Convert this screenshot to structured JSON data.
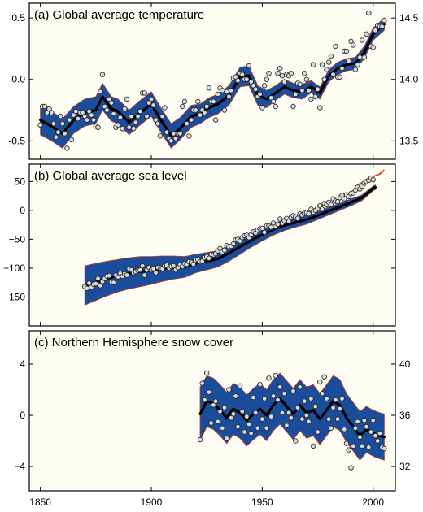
{
  "chart_data": [
    {
      "id": "temp",
      "type": "scatter",
      "title": "(a) Global average temperature",
      "xlim": [
        1845,
        2010
      ],
      "ylim": [
        -0.65,
        0.62
      ],
      "y_ticks": [
        -0.5,
        0.0,
        0.5
      ],
      "y_tick_labels": [
        "-0.5",
        "0.0",
        "0.5"
      ],
      "y2_ticks": [
        -0.5,
        0.0,
        0.5
      ],
      "y2_tick_labels": [
        "13.5",
        "14.0",
        "14.5"
      ],
      "smooth": {
        "x": [
          1850,
          1855,
          1860,
          1865,
          1870,
          1875,
          1878,
          1882,
          1885,
          1890,
          1895,
          1900,
          1905,
          1909,
          1913,
          1918,
          1922,
          1926,
          1930,
          1935,
          1940,
          1944,
          1948,
          1952,
          1956,
          1960,
          1964,
          1968,
          1972,
          1976,
          1980,
          1984,
          1988,
          1992,
          1996,
          2000,
          2005
        ],
        "y": [
          -0.33,
          -0.38,
          -0.44,
          -0.33,
          -0.27,
          -0.25,
          -0.14,
          -0.24,
          -0.26,
          -0.35,
          -0.27,
          -0.2,
          -0.35,
          -0.46,
          -0.4,
          -0.3,
          -0.28,
          -0.23,
          -0.2,
          -0.13,
          0.02,
          0.03,
          -0.13,
          -0.16,
          -0.11,
          -0.06,
          -0.09,
          -0.1,
          -0.06,
          -0.11,
          0.03,
          0.09,
          0.12,
          0.13,
          0.22,
          0.37,
          0.45
        ]
      },
      "band_halfwidth": [
        0.12,
        0.12,
        0.12,
        0.11,
        0.11,
        0.11,
        0.11,
        0.1,
        0.1,
        0.1,
        0.1,
        0.1,
        0.1,
        0.1,
        0.09,
        0.09,
        0.08,
        0.08,
        0.08,
        0.08,
        0.08,
        0.08,
        0.08,
        0.07,
        0.06,
        0.06,
        0.06,
        0.06,
        0.05,
        0.05,
        0.05,
        0.05,
        0.05,
        0.05,
        0.05,
        0.05,
        0.05
      ],
      "points": {
        "x": [
          1850,
          1851,
          1852,
          1853,
          1854,
          1855,
          1856,
          1857,
          1858,
          1859,
          1860,
          1861,
          1862,
          1863,
          1864,
          1865,
          1866,
          1867,
          1868,
          1869,
          1870,
          1871,
          1872,
          1873,
          1874,
          1875,
          1876,
          1877,
          1878,
          1879,
          1880,
          1881,
          1882,
          1883,
          1884,
          1885,
          1886,
          1887,
          1888,
          1889,
          1890,
          1891,
          1892,
          1893,
          1894,
          1895,
          1896,
          1897,
          1898,
          1899,
          1900,
          1901,
          1902,
          1903,
          1904,
          1905,
          1906,
          1907,
          1908,
          1909,
          1910,
          1911,
          1912,
          1913,
          1914,
          1915,
          1916,
          1917,
          1918,
          1919,
          1920,
          1921,
          1922,
          1923,
          1924,
          1925,
          1926,
          1927,
          1928,
          1929,
          1930,
          1931,
          1932,
          1933,
          1934,
          1935,
          1936,
          1937,
          1938,
          1939,
          1940,
          1941,
          1942,
          1943,
          1944,
          1945,
          1946,
          1947,
          1948,
          1949,
          1950,
          1951,
          1952,
          1953,
          1954,
          1955,
          1956,
          1957,
          1958,
          1959,
          1960,
          1961,
          1962,
          1963,
          1964,
          1965,
          1966,
          1967,
          1968,
          1969,
          1970,
          1971,
          1972,
          1973,
          1974,
          1975,
          1976,
          1977,
          1978,
          1979,
          1980,
          1981,
          1982,
          1983,
          1984,
          1985,
          1986,
          1987,
          1988,
          1989,
          1990,
          1991,
          1992,
          1993,
          1994,
          1995,
          1996,
          1997,
          1998,
          1999,
          2000,
          2001,
          2002,
          2003,
          2004,
          2005
        ],
        "y": [
          -0.37,
          -0.22,
          -0.22,
          -0.27,
          -0.24,
          -0.27,
          -0.36,
          -0.47,
          -0.43,
          -0.3,
          -0.36,
          -0.44,
          -0.56,
          -0.33,
          -0.49,
          -0.29,
          -0.26,
          -0.32,
          -0.27,
          -0.27,
          -0.3,
          -0.33,
          -0.26,
          -0.29,
          -0.33,
          -0.38,
          -0.39,
          -0.1,
          0.04,
          -0.22,
          -0.25,
          -0.16,
          -0.19,
          -0.28,
          -0.39,
          -0.37,
          -0.31,
          -0.4,
          -0.24,
          -0.16,
          -0.39,
          -0.3,
          -0.4,
          -0.35,
          -0.3,
          -0.26,
          -0.11,
          -0.11,
          -0.3,
          -0.19,
          -0.16,
          -0.21,
          -0.33,
          -0.36,
          -0.46,
          -0.3,
          -0.23,
          -0.43,
          -0.48,
          -0.5,
          -0.44,
          -0.48,
          -0.44,
          -0.44,
          -0.22,
          -0.18,
          -0.36,
          -0.46,
          -0.33,
          -0.25,
          -0.25,
          -0.18,
          -0.29,
          -0.25,
          -0.27,
          -0.22,
          -0.07,
          -0.18,
          -0.18,
          -0.33,
          -0.12,
          -0.07,
          -0.09,
          -0.25,
          -0.1,
          -0.14,
          -0.09,
          0.01,
          0.02,
          -0.01,
          0.05,
          0.04,
          0.0,
          0.0,
          0.11,
          -0.02,
          -0.05,
          -0.08,
          -0.14,
          -0.12,
          -0.23,
          -0.05,
          0.0,
          0.05,
          -0.15,
          -0.18,
          -0.22,
          0.05,
          0.09,
          0.03,
          -0.02,
          0.04,
          0.03,
          0.05,
          -0.22,
          -0.12,
          -0.03,
          -0.04,
          -0.09,
          0.05,
          0.0,
          -0.09,
          -0.16,
          0.12,
          -0.14,
          -0.08,
          -0.23,
          0.12,
          0.0,
          0.08,
          0.14,
          0.19,
          0.04,
          0.27,
          0.02,
          0.02,
          0.09,
          0.23,
          0.23,
          0.15,
          0.31,
          0.28,
          0.08,
          0.12,
          0.18,
          0.32,
          0.18,
          0.37,
          0.54,
          0.27,
          0.26,
          0.4,
          0.44,
          0.43,
          0.43,
          0.48
        ]
      }
    },
    {
      "id": "sea",
      "type": "scatter",
      "title": "(b) Global average sea level",
      "xlim": [
        1845,
        2010
      ],
      "ylim": [
        -200,
        80
      ],
      "y_ticks": [
        -150,
        -100,
        -50,
        0,
        50
      ],
      "y_tick_labels": [
        "−150",
        "−100",
        "−50",
        "0",
        "50"
      ],
      "smooth": {
        "x": [
          1870,
          1875,
          1880,
          1885,
          1890,
          1895,
          1900,
          1905,
          1910,
          1915,
          1920,
          1925,
          1930,
          1935,
          1940,
          1945,
          1950,
          1955,
          1960,
          1965,
          1970,
          1975,
          1980,
          1985,
          1990,
          1995,
          2000,
          2001
        ],
        "y": [
          -130,
          -124,
          -118,
          -113,
          -109,
          -106,
          -104,
          -101,
          -99,
          -98,
          -92,
          -88,
          -84,
          -74,
          -63,
          -52,
          -42,
          -33,
          -26,
          -21,
          -16,
          -9,
          -1,
          6,
          14,
          22,
          38,
          40
        ]
      },
      "band_halfwidth": [
        34,
        32,
        30,
        28,
        27,
        26,
        24,
        22,
        20,
        18,
        16,
        15,
        14,
        14,
        13,
        12,
        11,
        10,
        9,
        8,
        8,
        7,
        7,
        6,
        6,
        5,
        4,
        4
      ],
      "satellite": {
        "x": [
          1993,
          1995,
          1997,
          1999,
          2001,
          2003,
          2005
        ],
        "y": [
          44,
          48,
          52,
          57,
          60,
          63,
          70
        ]
      },
      "points": {
        "x": [
          1870,
          1871,
          1872,
          1873,
          1874,
          1875,
          1876,
          1877,
          1878,
          1879,
          1880,
          1881,
          1882,
          1883,
          1884,
          1885,
          1886,
          1887,
          1888,
          1889,
          1890,
          1891,
          1892,
          1893,
          1894,
          1895,
          1896,
          1897,
          1898,
          1899,
          1900,
          1901,
          1902,
          1903,
          1904,
          1905,
          1906,
          1907,
          1908,
          1909,
          1910,
          1911,
          1912,
          1913,
          1914,
          1915,
          1916,
          1917,
          1918,
          1919,
          1920,
          1921,
          1922,
          1923,
          1924,
          1925,
          1926,
          1927,
          1928,
          1929,
          1930,
          1931,
          1932,
          1933,
          1934,
          1935,
          1936,
          1937,
          1938,
          1939,
          1940,
          1941,
          1942,
          1943,
          1944,
          1945,
          1946,
          1947,
          1948,
          1949,
          1950,
          1951,
          1952,
          1953,
          1954,
          1955,
          1956,
          1957,
          1958,
          1959,
          1960,
          1961,
          1962,
          1963,
          1964,
          1965,
          1966,
          1967,
          1968,
          1969,
          1970,
          1971,
          1972,
          1973,
          1974,
          1975,
          1976,
          1977,
          1978,
          1979,
          1980,
          1981,
          1982,
          1983,
          1984,
          1985,
          1986,
          1987,
          1988,
          1989,
          1990,
          1991,
          1992,
          1993,
          1994,
          1995,
          1996,
          1997,
          1998,
          1999,
          2000
        ],
        "y": [
          -132,
          -135,
          -126,
          -133,
          -128,
          -127,
          -118,
          -130,
          -123,
          -118,
          -114,
          -113,
          -124,
          -125,
          -112,
          -115,
          -109,
          -114,
          -110,
          -112,
          -101,
          -103,
          -108,
          -106,
          -104,
          -103,
          -96,
          -112,
          -103,
          -99,
          -103,
          -101,
          -108,
          -99,
          -100,
          -101,
          -96,
          -95,
          -100,
          -97,
          -96,
          -103,
          -99,
          -94,
          -97,
          -92,
          -93,
          -89,
          -90,
          -93,
          -86,
          -85,
          -89,
          -88,
          -82,
          -80,
          -83,
          -76,
          -77,
          -75,
          -70,
          -66,
          -72,
          -69,
          -61,
          -63,
          -62,
          -58,
          -51,
          -50,
          -53,
          -47,
          -44,
          -43,
          -47,
          -42,
          -37,
          -39,
          -34,
          -32,
          -31,
          -38,
          -27,
          -27,
          -29,
          -22,
          -28,
          -24,
          -15,
          -22,
          -18,
          -14,
          -19,
          -12,
          -9,
          -11,
          -14,
          -6,
          -8,
          -5,
          -4,
          -6,
          2,
          -3,
          0,
          4,
          8,
          2,
          12,
          10,
          14,
          10,
          20,
          16,
          15,
          22,
          26,
          20,
          27,
          24,
          29,
          30,
          35,
          40,
          37,
          42,
          47,
          50,
          52,
          56,
          53
        ]
      }
    },
    {
      "id": "snow",
      "type": "scatter",
      "title": "(c) Northern Hemisphere snow cover",
      "xlim": [
        1845,
        2010
      ],
      "ylim": [
        -5.9,
        6.6
      ],
      "y_ticks": [
        -4,
        0,
        4
      ],
      "y_tick_labels": [
        "−4",
        "0",
        "4"
      ],
      "y2_ticks": [
        -4,
        0,
        4
      ],
      "y2_tick_labels": [
        "32",
        "36",
        "40"
      ],
      "smooth": {
        "x": [
          1922,
          1925,
          1928,
          1931,
          1934,
          1937,
          1940,
          1943,
          1946,
          1949,
          1952,
          1955,
          1958,
          1961,
          1964,
          1967,
          1970,
          1973,
          1976,
          1979,
          1982,
          1985,
          1988,
          1991,
          1994,
          1997,
          2000,
          2003,
          2005
        ],
        "y": [
          0.1,
          1.1,
          0.9,
          0.4,
          -0.2,
          0.5,
          0.2,
          -0.4,
          0.1,
          0.5,
          0.0,
          0.8,
          1.3,
          0.7,
          0.1,
          0.8,
          0.2,
          0.4,
          -0.3,
          0.4,
          1.1,
          0.8,
          -0.2,
          -0.9,
          -1.6,
          -1.1,
          -1.4,
          -1.6,
          -1.7
        ]
      },
      "band_halfwidth": [
        2.1,
        2.0,
        2.0,
        2.0,
        2.0,
        2.0,
        2.0,
        2.0,
        2.0,
        2.0,
        2.0,
        2.0,
        2.0,
        2.0,
        2.0,
        2.0,
        2.0,
        2.0,
        2.0,
        2.0,
        2.0,
        2.0,
        1.9,
        1.9,
        1.9,
        1.8,
        1.8,
        1.8,
        1.8
      ],
      "points": {
        "x": [
          1922,
          1923,
          1924,
          1925,
          1926,
          1927,
          1928,
          1929,
          1930,
          1931,
          1932,
          1933,
          1934,
          1935,
          1936,
          1937,
          1938,
          1939,
          1940,
          1941,
          1942,
          1943,
          1944,
          1945,
          1946,
          1947,
          1948,
          1949,
          1950,
          1951,
          1952,
          1953,
          1954,
          1955,
          1956,
          1957,
          1958,
          1959,
          1960,
          1961,
          1962,
          1963,
          1964,
          1965,
          1966,
          1967,
          1968,
          1969,
          1970,
          1971,
          1972,
          1973,
          1974,
          1975,
          1976,
          1977,
          1978,
          1979,
          1980,
          1981,
          1982,
          1983,
          1984,
          1985,
          1986,
          1987,
          1988,
          1989,
          1990,
          1991,
          1992,
          1993,
          1994,
          1995,
          1996,
          1997,
          1998,
          1999,
          2000,
          2001,
          2002,
          2003,
          2004,
          2005
        ],
        "y": [
          -1.9,
          2.5,
          1.2,
          3.3,
          1.8,
          -0.6,
          0.8,
          1.1,
          -0.5,
          0.3,
          -1.0,
          0.6,
          -1.8,
          2.0,
          -0.2,
          0.1,
          1.5,
          -0.9,
          2.3,
          0.3,
          -1.3,
          -0.1,
          -0.7,
          -1.4,
          1.4,
          0.2,
          -1.0,
          2.4,
          -0.3,
          1.3,
          -1.0,
          2.9,
          -0.1,
          1.5,
          3.1,
          1.2,
          2.2,
          0.2,
          1.7,
          -0.8,
          0.2,
          -0.2,
          1.9,
          -2.0,
          0.6,
          2.2,
          -0.3,
          1.1,
          0.0,
          -0.5,
          1.3,
          -2.4,
          0.7,
          -1.3,
          2.6,
          1.7,
          3.0,
          1.3,
          -0.3,
          -1.0,
          0.6,
          1.2,
          -0.3,
          0.5,
          1.3,
          -1.1,
          -2.2,
          -2.7,
          -4.1,
          -2.4,
          -1.0,
          -0.5,
          -1.7,
          -2.4,
          -0.4,
          -0.9,
          -2.5,
          -1.3,
          -0.4,
          -1.6,
          -2.0,
          -1.4,
          -2.5,
          -2.6
        ]
      }
    }
  ],
  "x_axis": {
    "ticks": [
      1850,
      1900,
      1950,
      2000
    ],
    "tick_labels": [
      "1850",
      "1900",
      "1950",
      "2000"
    ]
  }
}
